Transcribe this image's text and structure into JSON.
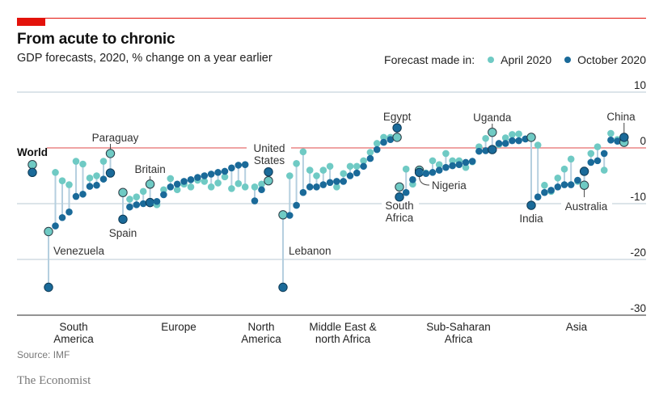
{
  "header": {
    "title": "From acute to chronic",
    "subtitle": "GDP forecasts, 2020, % change on a year earlier"
  },
  "legend": {
    "prefix": "Forecast made in:",
    "items": [
      {
        "label": "April 2020",
        "color": "#6fcac4"
      },
      {
        "label": "October 2020",
        "color": "#1a6a99"
      }
    ]
  },
  "footer": {
    "source": "Source: IMF",
    "brand": "The Economist"
  },
  "colors": {
    "accent": "#e3120b",
    "april": "#6fcac4",
    "october": "#1a6a99",
    "grid": "#c6d3dc",
    "zero": "#e56d6d",
    "stem": "#b5cfdf"
  },
  "chart_data": {
    "type": "scatter",
    "title": "From acute to chronic",
    "subtitle": "GDP forecasts, 2020, % change on a year earlier",
    "ylabel": "% change on a year earlier",
    "ylim": [
      -30,
      10
    ],
    "yticks": [
      10,
      0,
      -10,
      -20,
      -30
    ],
    "grid": true,
    "legend_position": "top-right",
    "series_names": [
      "April 2020",
      "October 2020"
    ],
    "world": {
      "label": "World",
      "april": -3.0,
      "october": -4.4
    },
    "groups": [
      {
        "name": "South America",
        "points": [
          {
            "label": "Venezuela",
            "april": -15.0,
            "october": -25.0
          },
          {
            "label": "",
            "april": -4.4,
            "october": -14.0
          },
          {
            "label": "",
            "april": -5.9,
            "october": -12.5
          },
          {
            "label": "",
            "april": -6.6,
            "october": -11.5
          },
          {
            "label": "",
            "april": -2.4,
            "october": -8.7
          },
          {
            "label": "",
            "april": -2.9,
            "october": -8.3
          },
          {
            "label": "",
            "april": -5.4,
            "october": -6.9
          },
          {
            "label": "",
            "april": -5.0,
            "october": -6.7
          },
          {
            "label": "",
            "april": -2.4,
            "october": -5.6
          },
          {
            "label": "Paraguay",
            "april": -1.0,
            "october": -4.5
          }
        ]
      },
      {
        "name": "Europe",
        "points": [
          {
            "label": "Spain",
            "april": -8.0,
            "october": -12.8
          },
          {
            "label": "",
            "april": -9.2,
            "october": -10.6
          },
          {
            "label": "",
            "april": -8.8,
            "october": -10.2
          },
          {
            "label": "",
            "april": -7.8,
            "october": -10.0
          },
          {
            "label": "Britain",
            "april": -6.5,
            "october": -9.8
          },
          {
            "label": "",
            "april": -10.2,
            "october": -9.6
          },
          {
            "label": "",
            "april": -7.5,
            "october": -8.4
          },
          {
            "label": "",
            "april": -5.5,
            "october": -7.0
          },
          {
            "label": "",
            "april": -7.5,
            "october": -6.5
          },
          {
            "label": "",
            "april": -6.5,
            "october": -6.0
          },
          {
            "label": "",
            "april": -7.0,
            "october": -5.7
          },
          {
            "label": "",
            "april": -5.8,
            "october": -5.3
          },
          {
            "label": "",
            "april": -6.0,
            "october": -5.0
          },
          {
            "label": "",
            "april": -7.0,
            "october": -4.7
          },
          {
            "label": "",
            "april": -6.3,
            "october": -4.4
          },
          {
            "label": "",
            "april": -5.2,
            "october": -4.2
          },
          {
            "label": "",
            "april": -7.3,
            "october": -3.6
          },
          {
            "label": "",
            "april": -6.4,
            "october": -3.1
          },
          {
            "label": "",
            "april": -7.0,
            "october": -3.0
          }
        ]
      },
      {
        "name": "North America",
        "points": [
          {
            "label": "",
            "april": -7.0,
            "october": -9.5
          },
          {
            "label": "",
            "april": -6.5,
            "october": -7.5
          },
          {
            "label": "United States",
            "april": -5.9,
            "october": -4.3
          }
        ]
      },
      {
        "name": "Middle East & north Africa",
        "points": [
          {
            "label": "Lebanon",
            "april": -12.0,
            "october": -25.0
          },
          {
            "label": "",
            "april": -5.0,
            "october": -12.1
          },
          {
            "label": "",
            "april": -2.8,
            "october": -10.3
          },
          {
            "label": "",
            "april": -0.7,
            "october": -8.0
          },
          {
            "label": "",
            "april": -4.0,
            "october": -7.0
          },
          {
            "label": "",
            "april": -5.0,
            "october": -7.0
          },
          {
            "label": "",
            "april": -4.0,
            "october": -6.6
          },
          {
            "label": "",
            "april": -3.3,
            "october": -6.2
          },
          {
            "label": "",
            "april": -7.0,
            "october": -6.0
          },
          {
            "label": "",
            "april": -4.6,
            "october": -6.0
          },
          {
            "label": "",
            "april": -3.3,
            "october": -5.0
          },
          {
            "label": "",
            "april": -3.3,
            "october": -4.5
          },
          {
            "label": "",
            "april": -2.3,
            "october": -3.3
          },
          {
            "label": "",
            "april": -0.8,
            "october": -1.9
          },
          {
            "label": "",
            "april": 0.8,
            "october": -0.3
          },
          {
            "label": "",
            "april": 1.9,
            "october": 1.0
          },
          {
            "label": "",
            "april": 1.9,
            "october": 1.5
          },
          {
            "label": "Egypt",
            "april": 1.9,
            "october": 3.6
          }
        ]
      },
      {
        "name": "Sub-Saharan Africa",
        "points": [
          {
            "label": "South Africa",
            "april": -7.0,
            "october": -8.8
          },
          {
            "label": "",
            "april": -3.8,
            "october": -8.0
          },
          {
            "label": "",
            "april": -6.5,
            "october": -5.7
          },
          {
            "label": "Nigeria",
            "april": -4.0,
            "october": -4.4
          },
          {
            "label": "",
            "april": -4.5,
            "october": -4.6
          },
          {
            "label": "",
            "april": -2.3,
            "october": -4.4
          },
          {
            "label": "",
            "april": -3.0,
            "october": -4.0
          },
          {
            "label": "",
            "april": -1.0,
            "october": -3.5
          },
          {
            "label": "",
            "april": -2.3,
            "october": -3.2
          },
          {
            "label": "",
            "april": -2.3,
            "october": -3.0
          },
          {
            "label": "",
            "april": -3.5,
            "october": -2.6
          },
          {
            "label": "",
            "april": -2.5,
            "october": -2.4
          },
          {
            "label": "",
            "april": 0.2,
            "october": -0.6
          },
          {
            "label": "",
            "april": 1.7,
            "october": -0.5
          },
          {
            "label": "Uganda",
            "april": 2.8,
            "october": -0.3
          },
          {
            "label": "",
            "april": 0.6,
            "october": 0.8
          },
          {
            "label": "",
            "april": 1.8,
            "october": 0.8
          },
          {
            "label": "",
            "april": 2.4,
            "october": 1.3
          },
          {
            "label": "",
            "april": 2.5,
            "october": 1.3
          },
          {
            "label": "",
            "april": 1.6,
            "october": 1.6
          }
        ]
      },
      {
        "name": "Asia",
        "points": [
          {
            "label": "India",
            "april": 1.9,
            "october": -10.3
          },
          {
            "label": "",
            "april": 0.5,
            "october": -8.8
          },
          {
            "label": "",
            "april": -6.7,
            "october": -8.0
          },
          {
            "label": "",
            "april": -7.8,
            "october": -7.6
          },
          {
            "label": "",
            "april": -5.4,
            "october": -7.0
          },
          {
            "label": "",
            "april": -3.8,
            "october": -6.6
          },
          {
            "label": "",
            "april": -2.0,
            "october": -6.6
          },
          {
            "label": "",
            "april": -6.0,
            "october": -5.8
          },
          {
            "label": "Australia",
            "april": -6.7,
            "october": -4.2
          },
          {
            "label": "",
            "april": -1.0,
            "october": -2.6
          },
          {
            "label": "",
            "april": 0.2,
            "october": -2.3
          },
          {
            "label": "",
            "april": -4.0,
            "october": -1.0
          },
          {
            "label": "",
            "april": 2.6,
            "october": 1.4
          },
          {
            "label": "",
            "april": 1.5,
            "october": 1.2
          },
          {
            "label": "China",
            "april": 1.0,
            "october": 1.9
          }
        ]
      }
    ],
    "group_labels": [
      [
        "South",
        "America"
      ],
      [
        "Europe"
      ],
      [
        "North",
        "America"
      ],
      [
        "Middle East &",
        "north Africa"
      ],
      [
        "Sub-Saharan",
        "Africa"
      ],
      [
        "Asia"
      ]
    ]
  }
}
